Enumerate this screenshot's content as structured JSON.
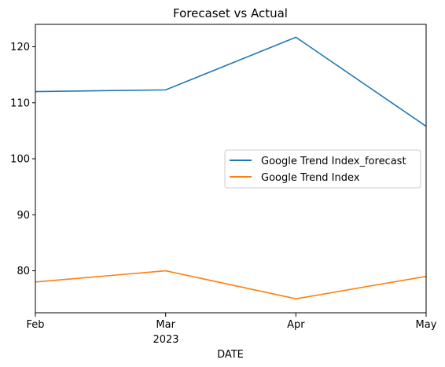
{
  "chart_data": {
    "type": "line",
    "title": "Forecaset vs Actual",
    "xlabel": "DATE",
    "ylabel": "",
    "x": [
      "2023-02",
      "2023-03",
      "2023-04",
      "2023-05"
    ],
    "x_tick_labels": [
      "Feb",
      "Mar",
      "Apr",
      "May"
    ],
    "x_year_label": "2023",
    "y_ticks": [
      80,
      90,
      100,
      110,
      120
    ],
    "ylim": [
      72.5,
      124
    ],
    "grid": false,
    "legend_position": "center-right",
    "series": [
      {
        "name": "Google Trend Index_forecast",
        "color": "#1f77b4",
        "values": [
          112.0,
          112.3,
          121.7,
          105.8
        ]
      },
      {
        "name": "Google Trend Index",
        "color": "#ff7f0e",
        "values": [
          78.0,
          80.0,
          75.0,
          79.0
        ]
      }
    ]
  }
}
